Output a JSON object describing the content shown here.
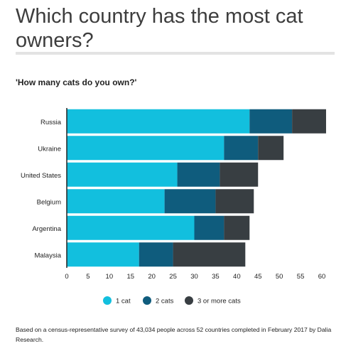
{
  "page_title": "Which country has the most cat owners?",
  "footnote": "Based on a census-representative survey of 43,034 people across 52 countries completed in February 2017 by Dalia Research.",
  "chart_data": {
    "type": "bar",
    "orientation": "horizontal",
    "stacked": true,
    "title": "'How many cats do you own?'",
    "categories": [
      "Russia",
      "Ukraine",
      "United States",
      "Belgium",
      "Argentina",
      "Malaysia"
    ],
    "series": [
      {
        "name": "1 cat",
        "color": "#12bfde",
        "values": [
          43,
          37,
          26,
          23,
          30,
          17
        ]
      },
      {
        "name": "2 cats",
        "color": "#0f5c7d",
        "values": [
          10,
          8,
          10,
          12,
          7,
          8
        ]
      },
      {
        "name": "3 or more cats",
        "color": "#383e42",
        "values": [
          8,
          6,
          9,
          9,
          6,
          17
        ]
      }
    ],
    "xlim": [
      0,
      60
    ],
    "xticks": [
      0,
      5,
      10,
      15,
      20,
      25,
      30,
      35,
      40,
      45,
      50,
      55,
      60
    ],
    "grid": false,
    "legend_position": "bottom-center"
  }
}
